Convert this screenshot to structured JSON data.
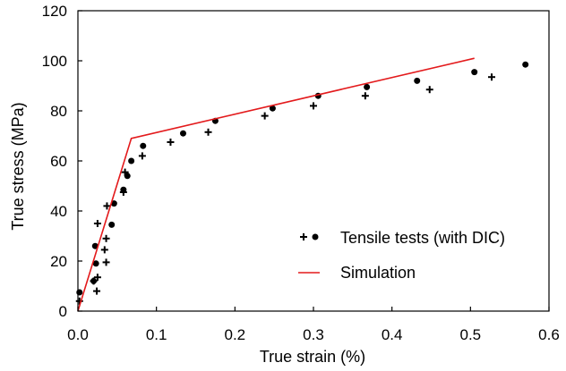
{
  "chart_data": {
    "type": "scatter",
    "title": "",
    "xlabel": "True strain (%)",
    "ylabel": "True stress (MPa)",
    "xlim": [
      0,
      0.6
    ],
    "ylim": [
      0,
      120
    ],
    "x_ticks": [
      0,
      0.1,
      0.2,
      0.3,
      0.4,
      0.5,
      0.6
    ],
    "x_tick_labels": [
      "0.0",
      "0.1",
      "0.2",
      "0.3",
      "0.4",
      "0.5",
      "0.6"
    ],
    "y_ticks": [
      0,
      20,
      40,
      60,
      80,
      100,
      120
    ],
    "y_tick_labels": [
      "0",
      "20",
      "40",
      "60",
      "80",
      "100",
      "120"
    ],
    "grid": false,
    "legend_position": "bottom-right",
    "legend": {
      "tensile_label": "Tensile tests (with DIC)",
      "simulation_label": "Simulation"
    },
    "colors": {
      "simulation": "#e31a1c",
      "markers": "#000000"
    },
    "series": [
      {
        "name": "Tensile tests (with DIC)",
        "kind": "scatter",
        "marker": "plus",
        "points": [
          [
            0.002,
            4
          ],
          [
            0.024,
            8
          ],
          [
            0.025,
            13.5
          ],
          [
            0.02,
            12
          ],
          [
            0.036,
            19.5
          ],
          [
            0.034,
            24.5
          ],
          [
            0.036,
            29
          ],
          [
            0.025,
            35
          ],
          [
            0.037,
            42
          ],
          [
            0.058,
            47.5
          ],
          [
            0.06,
            55.5
          ],
          [
            0.082,
            62
          ],
          [
            0.118,
            67.5
          ],
          [
            0.166,
            71.5
          ],
          [
            0.238,
            78
          ],
          [
            0.3,
            82
          ],
          [
            0.366,
            86
          ],
          [
            0.448,
            88.5
          ],
          [
            0.527,
            93.5
          ]
        ]
      },
      {
        "name": "Tensile tests (with DIC)",
        "kind": "scatter",
        "marker": "dot",
        "points": [
          [
            0.002,
            7.5
          ],
          [
            0.02,
            12
          ],
          [
            0.023,
            19
          ],
          [
            0.022,
            26
          ],
          [
            0.043,
            34.5
          ],
          [
            0.046,
            43
          ],
          [
            0.058,
            48.5
          ],
          [
            0.063,
            54
          ],
          [
            0.068,
            60
          ],
          [
            0.083,
            66
          ],
          [
            0.134,
            71
          ],
          [
            0.175,
            76
          ],
          [
            0.248,
            81
          ],
          [
            0.306,
            86
          ],
          [
            0.368,
            89.5
          ],
          [
            0.432,
            92
          ],
          [
            0.505,
            95.5
          ],
          [
            0.57,
            98.5
          ]
        ]
      },
      {
        "name": "Simulation",
        "kind": "line",
        "points": [
          [
            0,
            0
          ],
          [
            0.068,
            69
          ],
          [
            0.505,
            101
          ]
        ]
      }
    ]
  }
}
